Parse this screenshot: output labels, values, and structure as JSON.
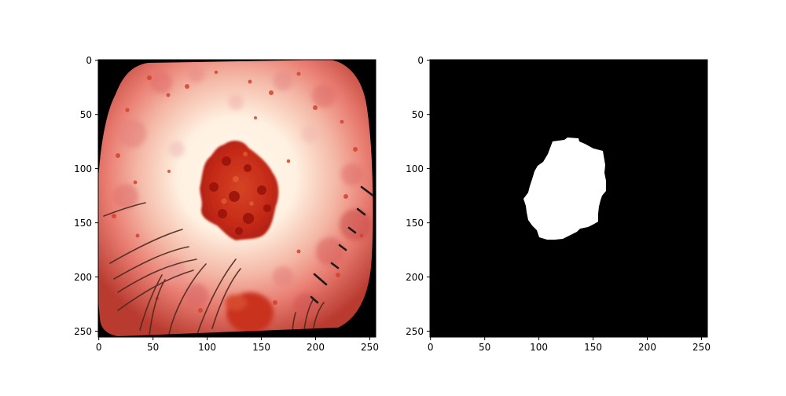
{
  "figure": {
    "background": "#ffffff",
    "panels": [
      {
        "id": "image",
        "content": "dermoscopy-image",
        "x_ticks": [
          "0",
          "50",
          "100",
          "150",
          "200",
          "250"
        ],
        "y_ticks": [
          "0",
          "50",
          "100",
          "150",
          "200",
          "250"
        ],
        "colors": {
          "outer_border": "#000000",
          "skin_light": "#fff4e4",
          "skin_pink": "#e58a8c",
          "lesion_core": "#c52815",
          "lesion_dark": "#9e1209",
          "hair": "#4a2a20"
        }
      },
      {
        "id": "mask",
        "content": "binary-segmentation-mask",
        "x_ticks": [
          "0",
          "50",
          "100",
          "150",
          "200",
          "250"
        ],
        "y_ticks": [
          "0",
          "50",
          "100",
          "150",
          "200",
          "250"
        ],
        "colors": {
          "background": "#000000",
          "foreground": "#ffffff"
        }
      }
    ]
  }
}
